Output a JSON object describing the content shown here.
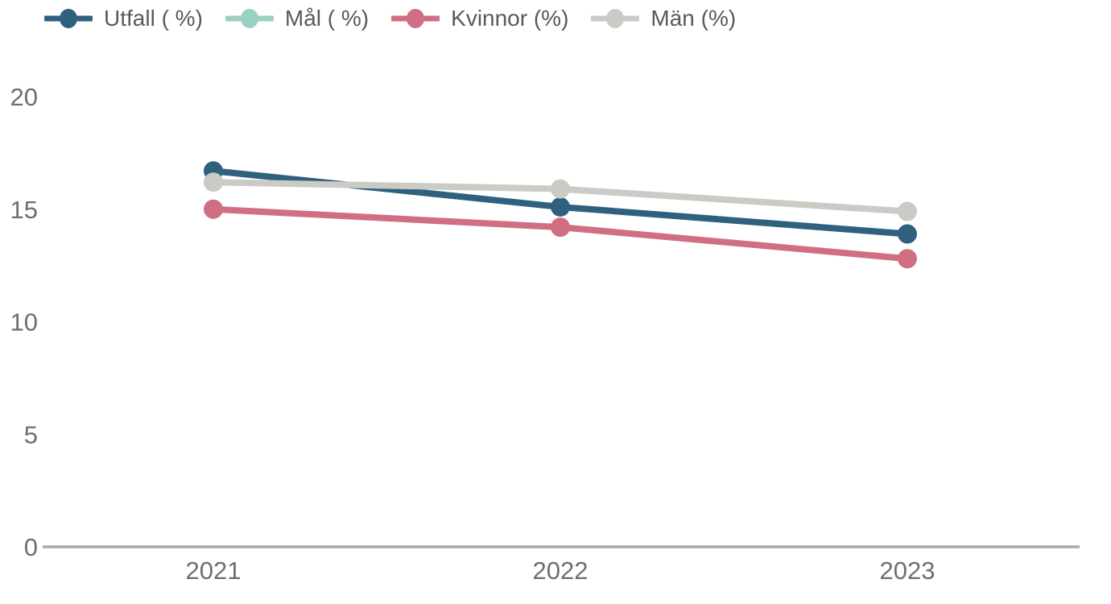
{
  "chart_data": {
    "type": "line",
    "title": "",
    "xlabel": "",
    "ylabel": "",
    "categories": [
      "2021",
      "2022",
      "2023"
    ],
    "series": [
      {
        "id": "utfall",
        "name": "Utfall ( %)",
        "color": "#2F617F",
        "values": [
          16.7,
          15.1,
          13.9
        ]
      },
      {
        "id": "mal",
        "name": "Mål ( %)",
        "color": "#9BCFC4",
        "values": [
          null,
          null,
          null
        ]
      },
      {
        "id": "kvinnor",
        "name": "Kvinnor (%)",
        "color": "#D06E82",
        "values": [
          15.0,
          14.2,
          12.8
        ]
      },
      {
        "id": "man",
        "name": "Män (%)",
        "color": "#CACBC4",
        "values": [
          16.2,
          15.9,
          14.9
        ]
      }
    ],
    "ylim": [
      0,
      20
    ],
    "yticks": [
      0,
      5,
      10,
      15,
      20
    ],
    "grid": false,
    "legend_position": "top-left",
    "axis_color": "#A9A9A9",
    "tick_label_color": "#6E6E6E",
    "legend_text_color": "#58595b",
    "background": "#ffffff"
  }
}
